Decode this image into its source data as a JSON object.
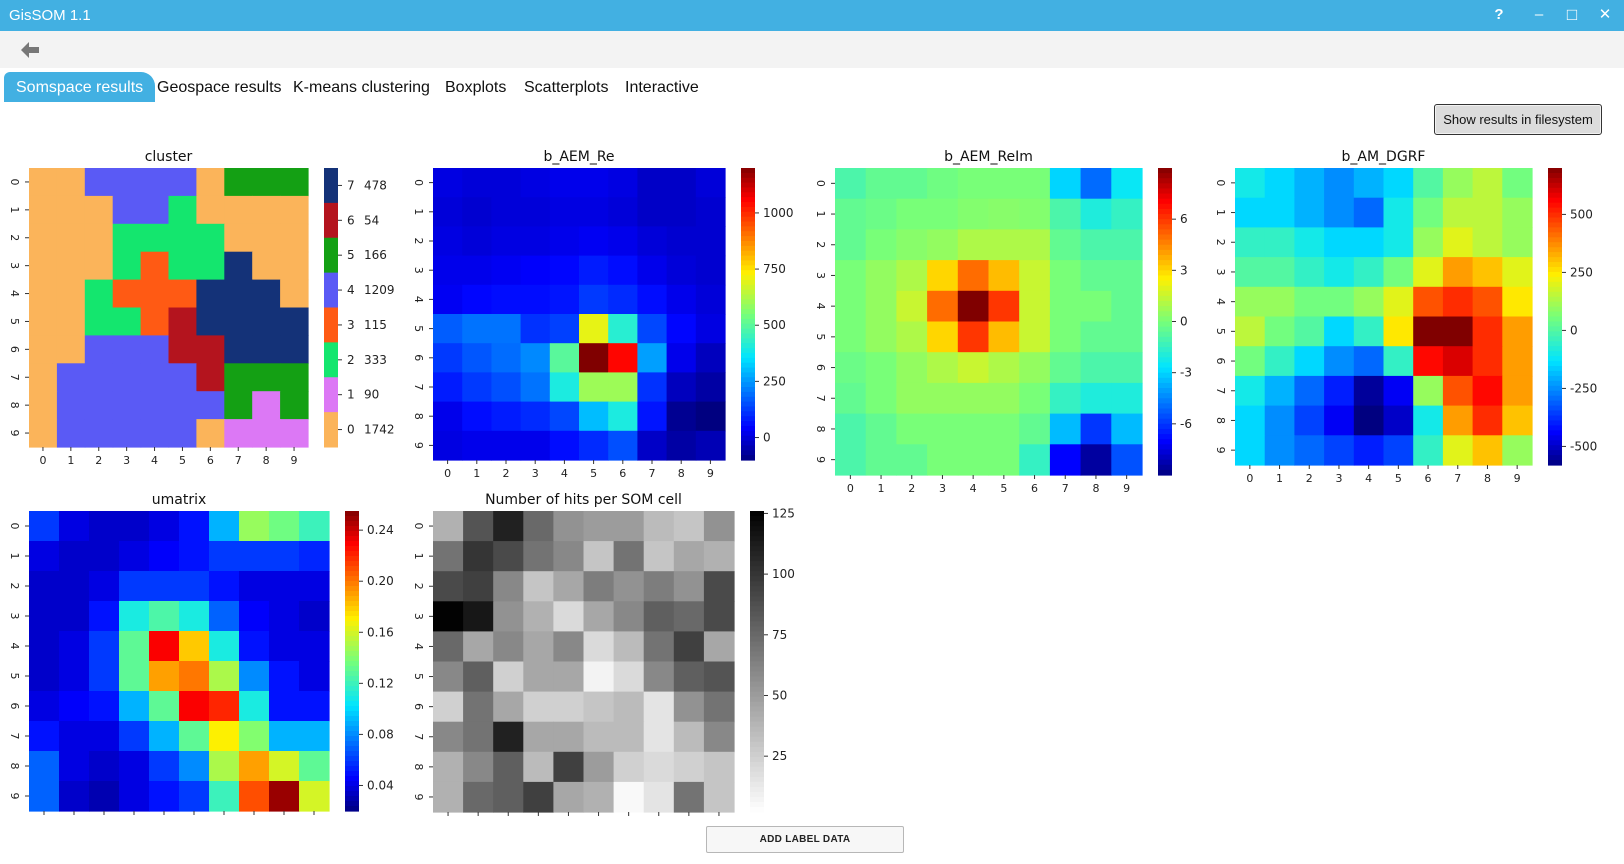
{
  "window": {
    "title": "GisSOM 1.1",
    "help_glyph": "?",
    "minimize_glyph": "–",
    "maximize_glyph": "□",
    "close_glyph": "✕"
  },
  "nav": {
    "back_icon": "back-arrow-icon"
  },
  "tabs": [
    {
      "label": "Somspace results",
      "active": true
    },
    {
      "label": "Geospace results",
      "active": false
    },
    {
      "label": "K-means clustering",
      "active": false
    },
    {
      "label": "Boxplots",
      "active": false
    },
    {
      "label": "Scatterplots",
      "active": false
    },
    {
      "label": "Interactive",
      "active": false
    }
  ],
  "buttons": {
    "show_results": "Show results in filesystem",
    "add_label": "ADD LABEL DATA"
  },
  "chart_data": [
    {
      "type": "heatmap",
      "title": "cluster",
      "x": [
        "0",
        "1",
        "2",
        "3",
        "4",
        "5",
        "6",
        "7",
        "8",
        "9"
      ],
      "y": [
        "0",
        "1",
        "2",
        "3",
        "4",
        "5",
        "6",
        "7",
        "8",
        "9"
      ],
      "colorscale": "categorical",
      "legend": [
        {
          "cluster": "0",
          "count": "1742",
          "color": "#fbb45a"
        },
        {
          "cluster": "1",
          "count": "90",
          "color": "#dc78f5"
        },
        {
          "cluster": "2",
          "count": "333",
          "color": "#14e66e"
        },
        {
          "cluster": "3",
          "count": "115",
          "color": "#ff5a14"
        },
        {
          "cluster": "4",
          "count": "1209",
          "color": "#5a5af5"
        },
        {
          "cluster": "5",
          "count": "166",
          "color": "#14a014"
        },
        {
          "cluster": "6",
          "count": "54",
          "color": "#b4141e"
        },
        {
          "cluster": "7",
          "count": "478",
          "color": "#143278"
        }
      ],
      "values": [
        [
          0,
          0,
          4,
          4,
          4,
          4,
          0,
          5,
          5,
          5
        ],
        [
          0,
          0,
          0,
          4,
          4,
          2,
          0,
          0,
          0,
          0
        ],
        [
          0,
          0,
          0,
          2,
          2,
          2,
          2,
          0,
          0,
          0
        ],
        [
          0,
          0,
          0,
          2,
          3,
          2,
          2,
          7,
          0,
          0
        ],
        [
          0,
          0,
          2,
          3,
          3,
          3,
          7,
          7,
          7,
          0
        ],
        [
          0,
          0,
          2,
          2,
          3,
          6,
          7,
          7,
          7,
          7
        ],
        [
          0,
          0,
          4,
          4,
          4,
          6,
          6,
          7,
          7,
          7
        ],
        [
          0,
          4,
          4,
          4,
          4,
          4,
          6,
          5,
          5,
          5
        ],
        [
          0,
          4,
          4,
          4,
          4,
          4,
          4,
          5,
          1,
          5
        ],
        [
          0,
          4,
          4,
          4,
          4,
          4,
          0,
          1,
          1,
          1
        ]
      ]
    },
    {
      "type": "heatmap",
      "title": "b_AEM_Re",
      "x": [
        "0",
        "1",
        "2",
        "3",
        "4",
        "5",
        "6",
        "7",
        "8",
        "9"
      ],
      "y": [
        "0",
        "1",
        "2",
        "3",
        "4",
        "5",
        "6",
        "7",
        "8",
        "9"
      ],
      "colorscale": "jet",
      "zlim": [
        -100,
        1200
      ],
      "colorbar_ticks": [
        "0",
        "250",
        "500",
        "750",
        "1000"
      ],
      "values": [
        [
          10,
          0,
          0,
          10,
          20,
          20,
          10,
          -20,
          -20,
          0
        ],
        [
          0,
          -10,
          0,
          0,
          10,
          10,
          0,
          -20,
          -20,
          -10
        ],
        [
          10,
          0,
          10,
          10,
          20,
          30,
          20,
          0,
          -10,
          -10
        ],
        [
          20,
          20,
          30,
          40,
          50,
          80,
          60,
          20,
          0,
          -10
        ],
        [
          30,
          50,
          60,
          60,
          70,
          120,
          100,
          60,
          20,
          0
        ],
        [
          170,
          200,
          200,
          110,
          130,
          700,
          420,
          140,
          50,
          10
        ],
        [
          120,
          160,
          190,
          230,
          500,
          1200,
          1050,
          260,
          20,
          -30
        ],
        [
          80,
          120,
          150,
          200,
          400,
          600,
          600,
          110,
          -30,
          -60
        ],
        [
          20,
          60,
          80,
          100,
          140,
          300,
          400,
          70,
          -80,
          -110
        ],
        [
          10,
          20,
          20,
          20,
          60,
          100,
          150,
          -20,
          -60,
          -40
        ]
      ]
    },
    {
      "type": "heatmap",
      "title": "b_AEM_ReIm",
      "x": [
        "0",
        "1",
        "2",
        "3",
        "4",
        "5",
        "6",
        "7",
        "8",
        "9"
      ],
      "y": [
        "0",
        "1",
        "2",
        "3",
        "4",
        "5",
        "6",
        "7",
        "8",
        "9"
      ],
      "colorscale": "jet",
      "zlim": [
        -9,
        9
      ],
      "colorbar_ticks": [
        "-6",
        "-3",
        "0",
        "3",
        "6"
      ],
      "values": [
        [
          -1,
          -0.5,
          -0.5,
          -0.2,
          0,
          0,
          0,
          -3,
          -5,
          -2.5
        ],
        [
          -0.5,
          -0.3,
          0,
          0,
          0.2,
          0.3,
          0.2,
          -1,
          -2,
          -1.5
        ],
        [
          -0.5,
          0,
          0.3,
          0.5,
          1,
          1,
          1,
          -0.5,
          -1,
          -1
        ],
        [
          0,
          0.5,
          1,
          3,
          5,
          3.5,
          1.5,
          0,
          -0.5,
          -0.5
        ],
        [
          0,
          0.5,
          1.5,
          5,
          9,
          6,
          1.5,
          0,
          0,
          -0.5
        ],
        [
          0,
          0.5,
          1,
          3,
          6,
          3.5,
          1.5,
          0,
          -0.5,
          -0.5
        ],
        [
          -0.3,
          0,
          0.5,
          1,
          1.5,
          1,
          0.5,
          -0.5,
          -1,
          -1
        ],
        [
          -0.5,
          0,
          0.5,
          0.5,
          0.5,
          0.5,
          0,
          -1.5,
          -2,
          -2
        ],
        [
          -1,
          -0.5,
          0,
          0,
          0,
          0,
          -0.5,
          -3.5,
          -6,
          -3.5
        ],
        [
          -1,
          -0.5,
          -0.5,
          0,
          0,
          0,
          -1.5,
          -7,
          -8.5,
          -5.5
        ]
      ]
    },
    {
      "type": "heatmap",
      "title": "b_AM_DGRF",
      "x": [
        "0",
        "1",
        "2",
        "3",
        "4",
        "5",
        "6",
        "7",
        "8",
        "9"
      ],
      "y": [
        "0",
        "1",
        "2",
        "3",
        "4",
        "5",
        "6",
        "7",
        "8",
        "9"
      ],
      "colorscale": "jet",
      "zlim": [
        -580,
        700
      ],
      "colorbar_ticks": [
        "-500",
        "-250",
        "0",
        "250",
        "500"
      ],
      "values": [
        [
          -100,
          -150,
          -200,
          -250,
          -200,
          -150,
          0,
          100,
          150,
          50
        ],
        [
          -150,
          -150,
          -200,
          -250,
          -300,
          -100,
          50,
          150,
          150,
          100
        ],
        [
          -50,
          -50,
          -100,
          -150,
          -150,
          -100,
          100,
          200,
          150,
          100
        ],
        [
          0,
          0,
          -50,
          -100,
          -50,
          50,
          200,
          350,
          300,
          200
        ],
        [
          100,
          100,
          50,
          50,
          100,
          200,
          450,
          500,
          450,
          250
        ],
        [
          150,
          50,
          0,
          -150,
          -50,
          250,
          700,
          700,
          500,
          350
        ],
        [
          50,
          -50,
          -150,
          -250,
          -300,
          -50,
          550,
          600,
          500,
          350
        ],
        [
          -100,
          -200,
          -300,
          -400,
          -550,
          -450,
          100,
          450,
          550,
          350
        ],
        [
          -150,
          -250,
          -350,
          -450,
          -580,
          -500,
          -100,
          350,
          500,
          300
        ],
        [
          -150,
          -250,
          -300,
          -350,
          -400,
          -350,
          -50,
          200,
          300,
          100
        ]
      ]
    },
    {
      "type": "heatmap",
      "title": "umatrix",
      "x": [
        "0",
        "1",
        "2",
        "3",
        "4",
        "5",
        "6",
        "7",
        "8",
        "9"
      ],
      "y": [
        "0",
        "1",
        "2",
        "3",
        "4",
        "5",
        "6",
        "7",
        "8",
        "9"
      ],
      "colorscale": "jet",
      "zlim": [
        0.02,
        0.255
      ],
      "colorbar_ticks": [
        "0.04",
        "0.08",
        "0.12",
        "0.16",
        "0.20",
        "0.24"
      ],
      "values": [
        [
          0.06,
          0.04,
          0.035,
          0.035,
          0.04,
          0.05,
          0.09,
          0.145,
          0.135,
          0.12
        ],
        [
          0.04,
          0.035,
          0.035,
          0.04,
          0.045,
          0.05,
          0.06,
          0.06,
          0.06,
          0.055
        ],
        [
          0.035,
          0.035,
          0.04,
          0.06,
          0.06,
          0.06,
          0.05,
          0.04,
          0.04,
          0.04
        ],
        [
          0.035,
          0.035,
          0.05,
          0.11,
          0.125,
          0.11,
          0.07,
          0.045,
          0.04,
          0.035
        ],
        [
          0.035,
          0.04,
          0.06,
          0.13,
          0.23,
          0.18,
          0.11,
          0.05,
          0.04,
          0.04
        ],
        [
          0.035,
          0.04,
          0.06,
          0.13,
          0.19,
          0.2,
          0.15,
          0.08,
          0.05,
          0.04
        ],
        [
          0.04,
          0.045,
          0.05,
          0.09,
          0.13,
          0.23,
          0.22,
          0.11,
          0.05,
          0.05
        ],
        [
          0.05,
          0.04,
          0.04,
          0.06,
          0.09,
          0.13,
          0.17,
          0.14,
          0.09,
          0.09
        ],
        [
          0.07,
          0.04,
          0.035,
          0.04,
          0.06,
          0.08,
          0.15,
          0.19,
          0.16,
          0.13
        ],
        [
          0.07,
          0.035,
          0.03,
          0.04,
          0.05,
          0.06,
          0.12,
          0.21,
          0.25,
          0.16
        ]
      ]
    },
    {
      "type": "heatmap",
      "title": "Number of hits per SOM cell",
      "x": [
        "0",
        "1",
        "2",
        "3",
        "4",
        "5",
        "6",
        "7",
        "8",
        "9"
      ],
      "y": [
        "0",
        "1",
        "2",
        "3",
        "4",
        "5",
        "6",
        "7",
        "8",
        "9"
      ],
      "colorscale": "greys",
      "zlim": [
        2,
        126
      ],
      "colorbar_ticks": [
        "25",
        "50",
        "75",
        "100",
        "125"
      ],
      "values": [
        [
          40,
          85,
          110,
          75,
          55,
          50,
          50,
          35,
          30,
          55
        ],
        [
          70,
          100,
          90,
          70,
          60,
          30,
          70,
          30,
          45,
          40
        ],
        [
          90,
          95,
          60,
          30,
          45,
          65,
          55,
          65,
          55,
          90
        ],
        [
          125,
          115,
          55,
          40,
          20,
          45,
          60,
          80,
          75,
          90
        ],
        [
          75,
          45,
          60,
          45,
          60,
          20,
          35,
          70,
          95,
          45
        ],
        [
          60,
          80,
          25,
          45,
          45,
          8,
          20,
          60,
          80,
          85
        ],
        [
          25,
          70,
          45,
          25,
          25,
          30,
          35,
          15,
          55,
          70
        ],
        [
          60,
          70,
          110,
          45,
          45,
          35,
          35,
          15,
          35,
          60
        ],
        [
          40,
          60,
          80,
          35,
          95,
          50,
          25,
          20,
          25,
          30
        ],
        [
          40,
          75,
          80,
          95,
          45,
          40,
          5,
          15,
          70,
          30
        ]
      ]
    }
  ]
}
